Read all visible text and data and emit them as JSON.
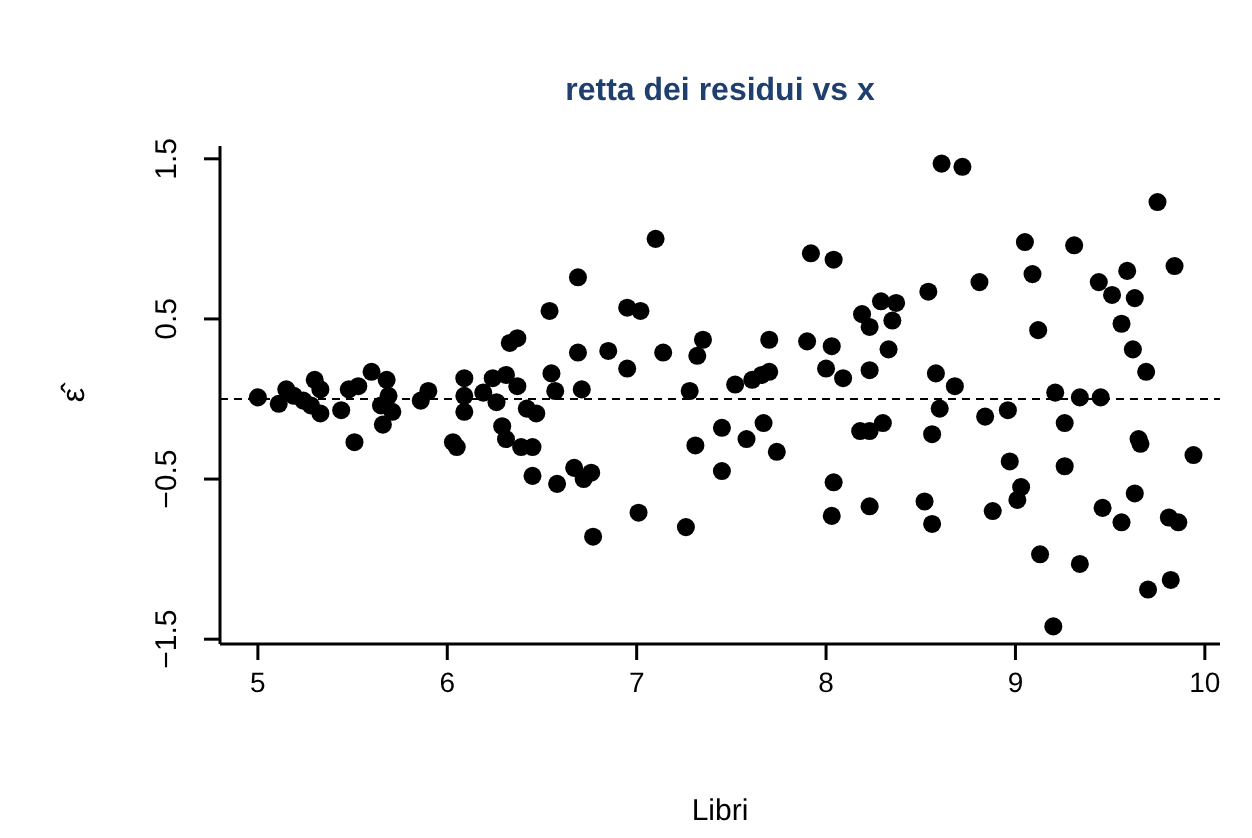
{
  "chart_data": {
    "type": "scatter",
    "title": "retta dei residui vs x",
    "xlabel": "Libri",
    "ylabel": "ε̂",
    "xlim": [
      4.8,
      10.08
    ],
    "ylim": [
      -1.53,
      1.58
    ],
    "xticks": [
      5,
      6,
      7,
      8,
      9,
      10
    ],
    "yticks": [
      -1.5,
      -0.5,
      0.5,
      1.5
    ],
    "marker": "circle",
    "grid": false,
    "ref_lines": [
      {
        "axis": "y",
        "value": 0,
        "line_style": "dashed",
        "color": "#000000"
      }
    ],
    "series": [
      {
        "color": "#000000",
        "x": [
          5.0,
          5.11,
          5.15,
          5.19,
          5.24,
          5.3,
          5.33,
          5.33,
          5.28,
          5.44,
          5.51,
          5.48,
          5.53,
          5.6,
          5.68,
          5.69,
          5.65,
          5.71,
          5.66,
          5.86,
          5.9,
          6.03,
          6.05,
          6.09,
          6.09,
          6.09,
          6.19,
          6.24,
          6.31,
          6.26,
          6.37,
          6.29,
          6.31,
          6.33,
          6.37,
          6.42,
          6.47,
          6.39,
          6.45,
          6.45,
          6.54,
          6.55,
          6.57,
          6.58,
          6.67,
          6.69,
          6.69,
          6.71,
          6.72,
          6.76,
          6.77,
          6.85,
          6.95,
          6.95,
          7.02,
          7.01,
          7.1,
          7.14,
          7.26,
          7.28,
          7.31,
          7.32,
          7.35,
          7.45,
          7.45,
          7.52,
          7.58,
          7.61,
          7.66,
          7.7,
          7.67,
          7.7,
          7.74,
          7.9,
          7.92,
          8.0,
          8.03,
          8.04,
          8.04,
          8.03,
          8.09,
          8.18,
          8.23,
          8.3,
          8.19,
          8.23,
          8.29,
          8.37,
          8.35,
          8.33,
          8.23,
          8.23,
          8.61,
          8.72,
          8.54,
          8.58,
          8.68,
          8.6,
          8.56,
          8.52,
          8.56,
          8.81,
          8.84,
          8.88,
          8.96,
          8.97,
          9.03,
          9.01,
          9.05,
          9.09,
          9.12,
          9.13,
          9.21,
          9.26,
          9.26,
          9.2,
          9.31,
          9.34,
          9.34,
          9.44,
          9.45,
          9.46,
          9.51,
          9.56,
          9.56,
          9.59,
          9.63,
          9.62,
          9.69,
          9.65,
          9.66,
          9.63,
          9.75,
          9.84,
          9.7,
          9.82,
          9.81,
          9.86,
          9.94
        ],
        "values": [
          0.01,
          -0.03,
          0.06,
          0.02,
          -0.01,
          0.12,
          0.06,
          -0.09,
          -0.04,
          -0.07,
          -0.27,
          0.06,
          0.08,
          0.17,
          0.12,
          0.02,
          -0.04,
          -0.08,
          -0.16,
          -0.01,
          0.05,
          -0.27,
          -0.3,
          0.13,
          0.02,
          -0.08,
          0.04,
          0.13,
          0.15,
          -0.02,
          0.08,
          -0.17,
          -0.25,
          0.35,
          0.38,
          -0.06,
          -0.09,
          -0.3,
          -0.3,
          -0.48,
          0.55,
          0.16,
          0.05,
          -0.53,
          -0.43,
          0.76,
          0.29,
          0.06,
          -0.5,
          -0.46,
          -0.86,
          0.3,
          0.19,
          0.57,
          0.55,
          -0.71,
          1.0,
          0.29,
          -0.8,
          0.05,
          -0.29,
          0.27,
          0.37,
          -0.18,
          -0.45,
          0.09,
          -0.25,
          0.12,
          0.15,
          0.17,
          -0.15,
          0.37,
          -0.33,
          0.36,
          0.91,
          0.19,
          0.33,
          0.87,
          -0.52,
          -0.73,
          0.13,
          -0.2,
          -0.2,
          -0.15,
          0.53,
          0.45,
          0.61,
          0.6,
          0.49,
          0.31,
          0.18,
          -0.67,
          1.47,
          1.45,
          0.67,
          0.16,
          0.08,
          -0.06,
          -0.22,
          -0.64,
          -0.78,
          0.73,
          -0.11,
          -0.7,
          -0.07,
          -0.39,
          -0.55,
          -0.63,
          0.98,
          0.78,
          0.43,
          -0.97,
          0.04,
          -0.15,
          -0.42,
          -1.42,
          0.96,
          0.01,
          -1.03,
          0.73,
          0.01,
          -0.68,
          0.65,
          0.47,
          -0.77,
          0.8,
          0.63,
          0.31,
          0.17,
          -0.25,
          -0.28,
          -0.59,
          1.23,
          0.83,
          -1.19,
          -1.13,
          -0.74,
          -0.77,
          -0.35
        ]
      }
    ]
  }
}
